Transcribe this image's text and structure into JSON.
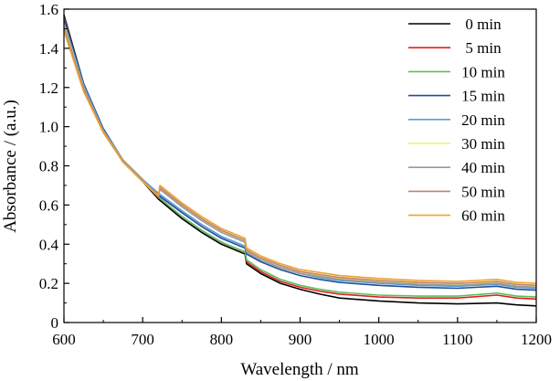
{
  "chart_data": {
    "type": "line",
    "xlabel": "Wavelength / nm",
    "ylabel": "Absorbance / (a.u.)",
    "xlim": [
      600,
      1200
    ],
    "ylim": [
      0,
      1.6
    ],
    "x_ticks": [
      "600",
      "700",
      "800",
      "900",
      "1000",
      "1100",
      "1200"
    ],
    "y_ticks": [
      "0",
      "0.2",
      "0.4",
      "0.6",
      "0.8",
      "1.0",
      "1.2",
      "1.4",
      "1.6"
    ],
    "grid": false,
    "legend_position": "top-right",
    "series": [
      {
        "name": "0 min",
        "color": "#000000",
        "points": [
          [
            600,
            1.57
          ],
          [
            625,
            1.22
          ],
          [
            650,
            0.98
          ],
          [
            675,
            0.82
          ],
          [
            700,
            0.72
          ],
          [
            720,
            0.63
          ],
          [
            750,
            0.53
          ],
          [
            775,
            0.46
          ],
          [
            800,
            0.4
          ],
          [
            830,
            0.35
          ],
          [
            832,
            0.3
          ],
          [
            850,
            0.25
          ],
          [
            875,
            0.2
          ],
          [
            900,
            0.17
          ],
          [
            925,
            0.145
          ],
          [
            950,
            0.125
          ],
          [
            1000,
            0.11
          ],
          [
            1050,
            0.1
          ],
          [
            1100,
            0.095
          ],
          [
            1150,
            0.1
          ],
          [
            1175,
            0.09
          ],
          [
            1200,
            0.085
          ]
        ]
      },
      {
        "name": "5 min",
        "color": "#e02020",
        "points": [
          [
            600,
            1.56
          ],
          [
            625,
            1.21
          ],
          [
            650,
            0.98
          ],
          [
            675,
            0.82
          ],
          [
            700,
            0.72
          ],
          [
            720,
            0.64
          ],
          [
            750,
            0.54
          ],
          [
            775,
            0.47
          ],
          [
            800,
            0.41
          ],
          [
            830,
            0.36
          ],
          [
            832,
            0.31
          ],
          [
            850,
            0.26
          ],
          [
            875,
            0.21
          ],
          [
            900,
            0.18
          ],
          [
            925,
            0.16
          ],
          [
            950,
            0.145
          ],
          [
            1000,
            0.13
          ],
          [
            1050,
            0.125
          ],
          [
            1100,
            0.125
          ],
          [
            1150,
            0.14
          ],
          [
            1175,
            0.125
          ],
          [
            1200,
            0.12
          ]
        ]
      },
      {
        "name": "10 min",
        "color": "#5cbf5c",
        "points": [
          [
            600,
            1.55
          ],
          [
            625,
            1.21
          ],
          [
            650,
            0.98
          ],
          [
            675,
            0.82
          ],
          [
            700,
            0.72
          ],
          [
            720,
            0.64
          ],
          [
            750,
            0.54
          ],
          [
            775,
            0.47
          ],
          [
            800,
            0.41
          ],
          [
            830,
            0.36
          ],
          [
            832,
            0.32
          ],
          [
            850,
            0.27
          ],
          [
            875,
            0.22
          ],
          [
            900,
            0.19
          ],
          [
            925,
            0.17
          ],
          [
            950,
            0.155
          ],
          [
            1000,
            0.14
          ],
          [
            1050,
            0.135
          ],
          [
            1100,
            0.135
          ],
          [
            1150,
            0.15
          ],
          [
            1175,
            0.135
          ],
          [
            1200,
            0.13
          ]
        ]
      },
      {
        "name": "15 min",
        "color": "#1f4e9a",
        "points": [
          [
            600,
            1.55
          ],
          [
            625,
            1.22
          ],
          [
            650,
            0.99
          ],
          [
            675,
            0.83
          ],
          [
            700,
            0.73
          ],
          [
            720,
            0.65
          ],
          [
            750,
            0.56
          ],
          [
            775,
            0.49
          ],
          [
            800,
            0.43
          ],
          [
            830,
            0.38
          ],
          [
            832,
            0.35
          ],
          [
            850,
            0.31
          ],
          [
            875,
            0.27
          ],
          [
            900,
            0.24
          ],
          [
            925,
            0.22
          ],
          [
            950,
            0.205
          ],
          [
            1000,
            0.19
          ],
          [
            1050,
            0.18
          ],
          [
            1100,
            0.175
          ],
          [
            1150,
            0.185
          ],
          [
            1175,
            0.17
          ],
          [
            1200,
            0.165
          ]
        ]
      },
      {
        "name": "20 min",
        "color": "#5b9bd5",
        "points": [
          [
            600,
            1.53
          ],
          [
            625,
            1.21
          ],
          [
            650,
            0.98
          ],
          [
            675,
            0.83
          ],
          [
            700,
            0.73
          ],
          [
            720,
            0.66
          ],
          [
            750,
            0.57
          ],
          [
            775,
            0.5
          ],
          [
            800,
            0.44
          ],
          [
            830,
            0.39
          ],
          [
            832,
            0.36
          ],
          [
            850,
            0.32
          ],
          [
            875,
            0.28
          ],
          [
            900,
            0.25
          ],
          [
            925,
            0.23
          ],
          [
            950,
            0.215
          ],
          [
            1000,
            0.2
          ],
          [
            1050,
            0.19
          ],
          [
            1100,
            0.185
          ],
          [
            1150,
            0.195
          ],
          [
            1175,
            0.18
          ],
          [
            1200,
            0.175
          ]
        ]
      },
      {
        "name": "30 min",
        "color": "#f2f25c",
        "points": [
          [
            600,
            1.52
          ],
          [
            625,
            1.2
          ],
          [
            650,
            0.98
          ],
          [
            675,
            0.83
          ],
          [
            700,
            0.73
          ],
          [
            720,
            0.64
          ],
          [
            722,
            0.69
          ],
          [
            750,
            0.6
          ],
          [
            775,
            0.53
          ],
          [
            800,
            0.47
          ],
          [
            830,
            0.42
          ],
          [
            832,
            0.37
          ],
          [
            850,
            0.33
          ],
          [
            875,
            0.29
          ],
          [
            900,
            0.26
          ],
          [
            925,
            0.24
          ],
          [
            950,
            0.225
          ],
          [
            1000,
            0.21
          ],
          [
            1050,
            0.2
          ],
          [
            1100,
            0.195
          ],
          [
            1150,
            0.205
          ],
          [
            1175,
            0.19
          ],
          [
            1200,
            0.185
          ]
        ]
      },
      {
        "name": "40 min",
        "color": "#999999",
        "points": [
          [
            600,
            1.51
          ],
          [
            625,
            1.2
          ],
          [
            650,
            0.98
          ],
          [
            675,
            0.83
          ],
          [
            700,
            0.73
          ],
          [
            720,
            0.64
          ],
          [
            722,
            0.68
          ],
          [
            750,
            0.59
          ],
          [
            775,
            0.52
          ],
          [
            800,
            0.46
          ],
          [
            830,
            0.41
          ],
          [
            832,
            0.36
          ],
          [
            850,
            0.32
          ],
          [
            875,
            0.28
          ],
          [
            900,
            0.25
          ],
          [
            925,
            0.235
          ],
          [
            950,
            0.22
          ],
          [
            1000,
            0.205
          ],
          [
            1050,
            0.195
          ],
          [
            1100,
            0.19
          ],
          [
            1150,
            0.2
          ],
          [
            1175,
            0.185
          ],
          [
            1200,
            0.18
          ]
        ]
      },
      {
        "name": "50 min",
        "color": "#c0846a",
        "points": [
          [
            600,
            1.5
          ],
          [
            625,
            1.19
          ],
          [
            650,
            0.97
          ],
          [
            675,
            0.82
          ],
          [
            700,
            0.72
          ],
          [
            720,
            0.64
          ],
          [
            722,
            0.69
          ],
          [
            750,
            0.6
          ],
          [
            775,
            0.53
          ],
          [
            800,
            0.47
          ],
          [
            830,
            0.42
          ],
          [
            832,
            0.37
          ],
          [
            850,
            0.33
          ],
          [
            875,
            0.29
          ],
          [
            900,
            0.26
          ],
          [
            925,
            0.245
          ],
          [
            950,
            0.23
          ],
          [
            1000,
            0.215
          ],
          [
            1050,
            0.205
          ],
          [
            1100,
            0.2
          ],
          [
            1150,
            0.21
          ],
          [
            1175,
            0.195
          ],
          [
            1200,
            0.19
          ]
        ]
      },
      {
        "name": "60 min",
        "color": "#f0a030",
        "points": [
          [
            600,
            1.49
          ],
          [
            625,
            1.18
          ],
          [
            650,
            0.97
          ],
          [
            675,
            0.82
          ],
          [
            700,
            0.72
          ],
          [
            720,
            0.65
          ],
          [
            722,
            0.7
          ],
          [
            750,
            0.61
          ],
          [
            775,
            0.54
          ],
          [
            800,
            0.48
          ],
          [
            830,
            0.43
          ],
          [
            832,
            0.38
          ],
          [
            850,
            0.34
          ],
          [
            875,
            0.3
          ],
          [
            900,
            0.27
          ],
          [
            925,
            0.255
          ],
          [
            950,
            0.24
          ],
          [
            1000,
            0.225
          ],
          [
            1050,
            0.215
          ],
          [
            1100,
            0.21
          ],
          [
            1150,
            0.22
          ],
          [
            1175,
            0.205
          ],
          [
            1200,
            0.2
          ]
        ]
      }
    ]
  }
}
